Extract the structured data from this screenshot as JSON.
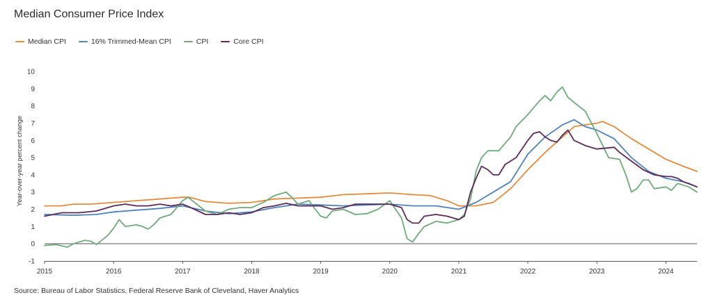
{
  "title": "Median Consumer Price Index",
  "source": "Source: Bureau of Labor Statistics, Federal Reserve Bank of Cleveland, Haver Analytics",
  "colors": {
    "median": "#e08b3e",
    "trimmed": "#4f82b8",
    "cpi": "#6fa97c",
    "core": "#5a2a57",
    "zero_line": "#555555",
    "axis": "#555555",
    "tick_text": "#333333"
  },
  "chart_data": {
    "type": "line",
    "title": "Median Consumer Price Index",
    "xlabel": "",
    "ylabel": "Year-over-year percent change",
    "x_ticks": [
      "2015",
      "2016",
      "2017",
      "2018",
      "2019",
      "2020",
      "2021",
      "2022",
      "2023",
      "2024"
    ],
    "xlim": [
      2015.0,
      2024.45
    ],
    "y_ticks": [
      -1,
      0,
      1,
      2,
      3,
      4,
      5,
      6,
      7,
      8,
      9,
      10
    ],
    "ylim": [
      -1,
      10
    ],
    "grid": false,
    "legend_position": "top-left",
    "series": [
      {
        "name": "Median CPI",
        "color_key": "median",
        "points": [
          [
            2015.0,
            2.2
          ],
          [
            2015.25,
            2.2
          ],
          [
            2015.42,
            2.3
          ],
          [
            2015.67,
            2.3
          ],
          [
            2016.0,
            2.4
          ],
          [
            2016.33,
            2.5
          ],
          [
            2016.67,
            2.6
          ],
          [
            2017.0,
            2.7
          ],
          [
            2017.1,
            2.7
          ],
          [
            2017.33,
            2.45
          ],
          [
            2017.67,
            2.35
          ],
          [
            2018.0,
            2.4
          ],
          [
            2018.33,
            2.6
          ],
          [
            2018.67,
            2.65
          ],
          [
            2019.0,
            2.7
          ],
          [
            2019.33,
            2.85
          ],
          [
            2019.67,
            2.9
          ],
          [
            2020.0,
            2.95
          ],
          [
            2020.33,
            2.85
          ],
          [
            2020.58,
            2.8
          ],
          [
            2020.83,
            2.5
          ],
          [
            2021.0,
            2.2
          ],
          [
            2021.25,
            2.2
          ],
          [
            2021.5,
            2.4
          ],
          [
            2021.75,
            3.2
          ],
          [
            2022.0,
            4.3
          ],
          [
            2022.25,
            5.3
          ],
          [
            2022.5,
            6.2
          ],
          [
            2022.67,
            6.8
          ],
          [
            2022.83,
            6.9
          ],
          [
            2023.0,
            7.0
          ],
          [
            2023.08,
            7.1
          ],
          [
            2023.25,
            6.8
          ],
          [
            2023.5,
            6.1
          ],
          [
            2023.75,
            5.5
          ],
          [
            2024.0,
            4.9
          ],
          [
            2024.25,
            4.5
          ],
          [
            2024.45,
            4.2
          ]
        ]
      },
      {
        "name": "16% Trimmed-Mean CPI",
        "color_key": "trimmed",
        "points": [
          [
            2015.0,
            1.7
          ],
          [
            2015.42,
            1.65
          ],
          [
            2015.75,
            1.7
          ],
          [
            2016.0,
            1.85
          ],
          [
            2016.33,
            1.95
          ],
          [
            2016.67,
            2.05
          ],
          [
            2017.0,
            2.2
          ],
          [
            2017.33,
            1.9
          ],
          [
            2017.67,
            1.75
          ],
          [
            2018.0,
            1.85
          ],
          [
            2018.33,
            2.1
          ],
          [
            2018.67,
            2.3
          ],
          [
            2019.0,
            2.25
          ],
          [
            2019.33,
            2.2
          ],
          [
            2019.67,
            2.25
          ],
          [
            2020.0,
            2.3
          ],
          [
            2020.33,
            2.2
          ],
          [
            2020.67,
            2.2
          ],
          [
            2021.0,
            2.0
          ],
          [
            2021.25,
            2.4
          ],
          [
            2021.5,
            3.0
          ],
          [
            2021.75,
            3.6
          ],
          [
            2022.0,
            5.2
          ],
          [
            2022.25,
            6.2
          ],
          [
            2022.5,
            6.9
          ],
          [
            2022.67,
            7.2
          ],
          [
            2022.83,
            6.8
          ],
          [
            2023.0,
            6.6
          ],
          [
            2023.25,
            6.1
          ],
          [
            2023.5,
            5.0
          ],
          [
            2023.75,
            4.2
          ],
          [
            2024.0,
            3.8
          ],
          [
            2024.25,
            3.6
          ],
          [
            2024.45,
            3.3
          ]
        ]
      },
      {
        "name": "CPI",
        "color_key": "cpi",
        "points": [
          [
            2015.0,
            -0.1
          ],
          [
            2015.17,
            -0.05
          ],
          [
            2015.33,
            -0.2
          ],
          [
            2015.42,
            0.0
          ],
          [
            2015.58,
            0.2
          ],
          [
            2015.67,
            0.15
          ],
          [
            2015.75,
            -0.05
          ],
          [
            2015.92,
            0.5
          ],
          [
            2016.0,
            0.9
          ],
          [
            2016.08,
            1.4
          ],
          [
            2016.17,
            1.0
          ],
          [
            2016.33,
            1.1
          ],
          [
            2016.42,
            1.0
          ],
          [
            2016.5,
            0.85
          ],
          [
            2016.58,
            1.1
          ],
          [
            2016.67,
            1.5
          ],
          [
            2016.83,
            1.7
          ],
          [
            2017.0,
            2.5
          ],
          [
            2017.08,
            2.7
          ],
          [
            2017.17,
            2.4
          ],
          [
            2017.33,
            1.9
          ],
          [
            2017.5,
            1.7
          ],
          [
            2017.67,
            2.0
          ],
          [
            2017.83,
            2.1
          ],
          [
            2018.0,
            2.1
          ],
          [
            2018.17,
            2.4
          ],
          [
            2018.33,
            2.8
          ],
          [
            2018.5,
            3.0
          ],
          [
            2018.58,
            2.7
          ],
          [
            2018.67,
            2.3
          ],
          [
            2018.83,
            2.5
          ],
          [
            2018.92,
            2.0
          ],
          [
            2019.0,
            1.6
          ],
          [
            2019.08,
            1.5
          ],
          [
            2019.17,
            1.9
          ],
          [
            2019.33,
            2.0
          ],
          [
            2019.5,
            1.7
          ],
          [
            2019.67,
            1.75
          ],
          [
            2019.83,
            2.0
          ],
          [
            2020.0,
            2.5
          ],
          [
            2020.17,
            1.5
          ],
          [
            2020.25,
            0.3
          ],
          [
            2020.33,
            0.1
          ],
          [
            2020.42,
            0.6
          ],
          [
            2020.5,
            1.0
          ],
          [
            2020.67,
            1.3
          ],
          [
            2020.83,
            1.2
          ],
          [
            2021.0,
            1.4
          ],
          [
            2021.08,
            1.7
          ],
          [
            2021.17,
            2.6
          ],
          [
            2021.25,
            4.2
          ],
          [
            2021.33,
            5.0
          ],
          [
            2021.42,
            5.4
          ],
          [
            2021.58,
            5.4
          ],
          [
            2021.75,
            6.2
          ],
          [
            2021.83,
            6.8
          ],
          [
            2022.0,
            7.5
          ],
          [
            2022.17,
            8.3
          ],
          [
            2022.25,
            8.6
          ],
          [
            2022.33,
            8.3
          ],
          [
            2022.42,
            8.8
          ],
          [
            2022.5,
            9.1
          ],
          [
            2022.58,
            8.5
          ],
          [
            2022.67,
            8.2
          ],
          [
            2022.83,
            7.7
          ],
          [
            2023.0,
            6.4
          ],
          [
            2023.17,
            5.0
          ],
          [
            2023.33,
            4.9
          ],
          [
            2023.42,
            4.0
          ],
          [
            2023.5,
            3.0
          ],
          [
            2023.58,
            3.2
          ],
          [
            2023.67,
            3.7
          ],
          [
            2023.75,
            3.7
          ],
          [
            2023.83,
            3.2
          ],
          [
            2024.0,
            3.3
          ],
          [
            2024.08,
            3.1
          ],
          [
            2024.17,
            3.5
          ],
          [
            2024.25,
            3.4
          ],
          [
            2024.33,
            3.3
          ],
          [
            2024.45,
            3.0
          ]
        ]
      },
      {
        "name": "Core CPI",
        "color_key": "core",
        "points": [
          [
            2015.0,
            1.6
          ],
          [
            2015.25,
            1.8
          ],
          [
            2015.5,
            1.8
          ],
          [
            2015.75,
            1.9
          ],
          [
            2016.0,
            2.2
          ],
          [
            2016.17,
            2.3
          ],
          [
            2016.33,
            2.2
          ],
          [
            2016.5,
            2.2
          ],
          [
            2016.67,
            2.3
          ],
          [
            2016.83,
            2.2
          ],
          [
            2017.0,
            2.3
          ],
          [
            2017.17,
            2.0
          ],
          [
            2017.33,
            1.7
          ],
          [
            2017.5,
            1.7
          ],
          [
            2017.67,
            1.8
          ],
          [
            2017.83,
            1.7
          ],
          [
            2018.0,
            1.8
          ],
          [
            2018.17,
            2.1
          ],
          [
            2018.33,
            2.2
          ],
          [
            2018.5,
            2.35
          ],
          [
            2018.67,
            2.2
          ],
          [
            2018.83,
            2.2
          ],
          [
            2019.0,
            2.2
          ],
          [
            2019.17,
            2.0
          ],
          [
            2019.33,
            2.1
          ],
          [
            2019.5,
            2.3
          ],
          [
            2019.67,
            2.3
          ],
          [
            2019.83,
            2.3
          ],
          [
            2020.0,
            2.3
          ],
          [
            2020.17,
            2.1
          ],
          [
            2020.25,
            1.4
          ],
          [
            2020.33,
            1.2
          ],
          [
            2020.42,
            1.2
          ],
          [
            2020.5,
            1.6
          ],
          [
            2020.67,
            1.7
          ],
          [
            2020.83,
            1.6
          ],
          [
            2021.0,
            1.4
          ],
          [
            2021.08,
            1.6
          ],
          [
            2021.17,
            3.0
          ],
          [
            2021.25,
            3.8
          ],
          [
            2021.33,
            4.5
          ],
          [
            2021.42,
            4.3
          ],
          [
            2021.5,
            4.0
          ],
          [
            2021.58,
            4.0
          ],
          [
            2021.67,
            4.6
          ],
          [
            2021.83,
            5.0
          ],
          [
            2022.0,
            6.0
          ],
          [
            2022.08,
            6.4
          ],
          [
            2022.17,
            6.5
          ],
          [
            2022.25,
            6.2
          ],
          [
            2022.33,
            6.0
          ],
          [
            2022.42,
            5.9
          ],
          [
            2022.5,
            6.3
          ],
          [
            2022.58,
            6.6
          ],
          [
            2022.67,
            6.0
          ],
          [
            2022.83,
            5.7
          ],
          [
            2023.0,
            5.5
          ],
          [
            2023.25,
            5.6
          ],
          [
            2023.33,
            5.3
          ],
          [
            2023.5,
            4.8
          ],
          [
            2023.67,
            4.3
          ],
          [
            2023.83,
            4.0
          ],
          [
            2024.0,
            3.9
          ],
          [
            2024.08,
            3.9
          ],
          [
            2024.17,
            3.8
          ],
          [
            2024.25,
            3.6
          ],
          [
            2024.33,
            3.5
          ],
          [
            2024.45,
            3.3
          ]
        ]
      }
    ]
  }
}
